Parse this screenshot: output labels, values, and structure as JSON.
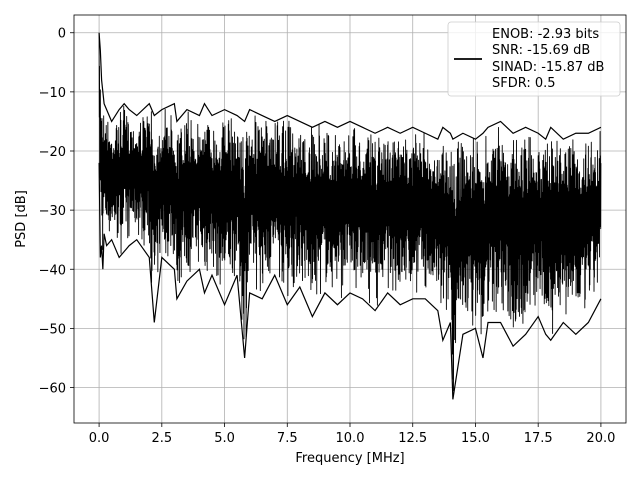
{
  "chart_data": {
    "type": "line",
    "title": "",
    "xlabel": "Frequency [MHz]",
    "ylabel": "PSD [dB]",
    "xlim": [
      -1.0,
      21.0
    ],
    "ylim": [
      -66.0,
      3.0
    ],
    "xticks": [
      0.0,
      2.5,
      5.0,
      7.5,
      10.0,
      12.5,
      15.0,
      17.5,
      20.0
    ],
    "xtick_labels": [
      "0.0",
      "2.5",
      "5.0",
      "7.5",
      "10.0",
      "12.5",
      "15.0",
      "17.5",
      "20.0"
    ],
    "yticks": [
      0,
      -10,
      -20,
      -30,
      -40,
      -50,
      -60
    ],
    "ytick_labels": [
      "0",
      "−10",
      "−20",
      "−30",
      "−40",
      "−50",
      "−60"
    ],
    "grid": true,
    "legend": {
      "placement": "top-right",
      "entries": [
        "ENOB: -2.93 bits",
        "SNR: -15.69 dB",
        "SINAD: -15.87 dB",
        "SFDR: 0.5"
      ]
    },
    "series": [
      {
        "color": "#000000",
        "x": [
          0.0,
          0.05,
          0.1,
          0.15,
          0.2,
          0.3,
          0.5,
          0.8,
          1.0,
          1.2,
          1.5,
          2.0,
          2.2,
          2.5,
          3.0,
          3.1,
          3.5,
          4.0,
          4.2,
          4.5,
          5.0,
          5.5,
          5.8,
          6.0,
          6.5,
          7.0,
          7.5,
          8.0,
          8.5,
          9.0,
          9.5,
          10.0,
          10.5,
          11.0,
          11.5,
          12.0,
          12.5,
          13.0,
          13.5,
          13.7,
          14.0,
          14.1,
          14.5,
          15.0,
          15.3,
          15.5,
          16.0,
          16.5,
          17.0,
          17.5,
          17.8,
          18.0,
          18.5,
          19.0,
          19.5,
          20.0
        ],
        "y_upper": [
          0,
          -3,
          -8,
          -10,
          -12,
          -13,
          -15,
          -13,
          -12,
          -13,
          -14,
          -12,
          -14,
          -13,
          -12,
          -15,
          -13,
          -14,
          -12,
          -14,
          -13,
          -14,
          -15,
          -13,
          -14,
          -15,
          -14,
          -15,
          -16,
          -15,
          -16,
          -15,
          -16,
          -17,
          -16,
          -17,
          -16,
          -17,
          -18,
          -16,
          -17,
          -18,
          -17,
          -18,
          -17,
          -16,
          -15,
          -17,
          -16,
          -17,
          -18,
          -16,
          -18,
          -17,
          -17,
          -16
        ],
        "y_lower": [
          -22,
          -38,
          -36,
          -40,
          -34,
          -36,
          -35,
          -38,
          -37,
          -36,
          -35,
          -38,
          -49,
          -38,
          -40,
          -45,
          -42,
          -40,
          -44,
          -41,
          -46,
          -41,
          -55,
          -44,
          -45,
          -41,
          -46,
          -43,
          -48,
          -44,
          -46,
          -44,
          -45,
          -47,
          -44,
          -46,
          -45,
          -45,
          -47,
          -52,
          -49,
          -62,
          -51,
          -50,
          -55,
          -49,
          -49,
          -53,
          -51,
          -48,
          -51,
          -52,
          -49,
          -51,
          -49,
          -45
        ]
      }
    ]
  }
}
